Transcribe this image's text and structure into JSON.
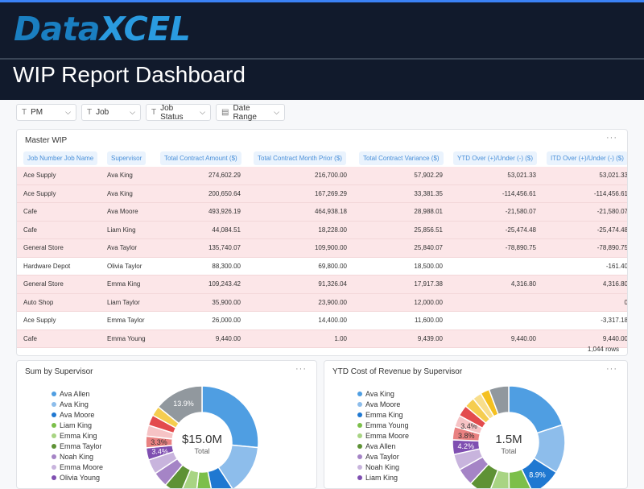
{
  "brand": {
    "logo_a": "Data",
    "logo_b": "XCEL"
  },
  "page_title": "WIP Report Dashboard",
  "filters": [
    {
      "label": "PM",
      "icon": "text-type-icon"
    },
    {
      "label": "Job",
      "icon": "text-type-icon"
    },
    {
      "label": "Job Status",
      "icon": "text-type-icon"
    },
    {
      "label": "Date Range",
      "icon": "calendar-icon"
    }
  ],
  "table": {
    "title": "Master WIP",
    "more": "···",
    "columns": [
      "Job Number Job Name",
      "Supervisor",
      "Total Contract Amount ($)",
      "Total Contract Month Prior ($)",
      "Total Contract Variance ($)",
      "YTD Over (+)/Under (-) ($)",
      "ITD Over (+)/Under (-) ($)"
    ],
    "rows": [
      {
        "hl": true,
        "cells": [
          "Ace Supply",
          "Ava King",
          "274,602.29",
          "216,700.00",
          "57,902.29",
          "53,021.33",
          "53,021.33"
        ]
      },
      {
        "hl": true,
        "cells": [
          "Ace Supply",
          "Ava King",
          "200,650.64",
          "167,269.29",
          "33,381.35",
          "-114,456.61",
          "-114,456.61"
        ]
      },
      {
        "hl": true,
        "cells": [
          "Cafe",
          "Ava Moore",
          "493,926.19",
          "464,938.18",
          "28,988.01",
          "-21,580.07",
          "-21,580.07"
        ]
      },
      {
        "hl": true,
        "cells": [
          "Cafe",
          "Liam King",
          "44,084.51",
          "18,228.00",
          "25,856.51",
          "-25,474.48",
          "-25,474.48"
        ]
      },
      {
        "hl": true,
        "cells": [
          "General Store",
          "Ava Taylor",
          "135,740.07",
          "109,900.00",
          "25,840.07",
          "-78,890.75",
          "-78,890.75"
        ]
      },
      {
        "hl": false,
        "cells": [
          "Hardware Depot",
          "Olivia Taylor",
          "88,300.00",
          "69,800.00",
          "18,500.00",
          "",
          "-161.40"
        ]
      },
      {
        "hl": true,
        "cells": [
          "General Store",
          "Emma King",
          "109,243.42",
          "91,326.04",
          "17,917.38",
          "4,316.80",
          "4,316.80"
        ]
      },
      {
        "hl": true,
        "cells": [
          "Auto Shop",
          "Liam Taylor",
          "35,900.00",
          "23,900.00",
          "12,000.00",
          "",
          "0"
        ]
      },
      {
        "hl": false,
        "cells": [
          "Ace Supply",
          "Emma Taylor",
          "26,000.00",
          "14,400.00",
          "11,600.00",
          "",
          "-3,317.18"
        ]
      },
      {
        "hl": true,
        "cells": [
          "Cafe",
          "Emma Young",
          "9,440.00",
          "1.00",
          "9,439.00",
          "9,440.00",
          "9,440.00"
        ]
      }
    ],
    "row_count": "1,044 rows"
  },
  "chart_data": [
    {
      "type": "pie",
      "title": "Sum by Supervisor",
      "more": "···",
      "center_value": "$15.0M",
      "center_label": "Total",
      "legend": "left",
      "slices": [
        {
          "name": "Ava Allen",
          "value": 26.0,
          "color": "#4f9ee2"
        },
        {
          "name": "Ava King",
          "value": 14.0,
          "color": "#8dbdeb"
        },
        {
          "name": "Ava Moore",
          "value": 6.0,
          "color": "#1f78d1"
        },
        {
          "name": "Liam King",
          "value": 4.8,
          "color": "#7cbf4a"
        },
        {
          "name": "Emma King",
          "value": 4.5,
          "color": "#a8d483"
        },
        {
          "name": "Emma Taylor",
          "value": 4.8,
          "color": "#5e9235"
        },
        {
          "name": "Noah King",
          "value": 4.3,
          "color": "#a584c6"
        },
        {
          "name": "Emma Moore",
          "value": 4.2,
          "color": "#c8b4dd"
        },
        {
          "name": "Olivia Young",
          "value": 3.4,
          "label": "3.4%",
          "color": "#7f4fb1"
        },
        {
          "name": "",
          "value": 3.3,
          "label": "3.3%",
          "color": "#e98181"
        },
        {
          "name": "",
          "value": 3.1,
          "color": "#f6c3c5"
        },
        {
          "name": "",
          "value": 3.0,
          "color": "#e34b4d"
        },
        {
          "name": "",
          "value": 2.8,
          "color": "#f5cd50"
        },
        {
          "name": "",
          "value": 13.9,
          "label": "13.9%",
          "color": "#91989e"
        }
      ]
    },
    {
      "type": "pie",
      "title": "YTD Cost of Revenue by Supervisor",
      "more": "···",
      "center_value": "1.5M",
      "center_label": "Total",
      "legend": "left",
      "slices": [
        {
          "name": "Ava King",
          "value": 20.0,
          "color": "#4f9ee2"
        },
        {
          "name": "Ava Moore",
          "value": 14.0,
          "color": "#8dbdeb"
        },
        {
          "name": "Emma King",
          "value": 8.9,
          "label": "8.9%",
          "color": "#1f78d1"
        },
        {
          "name": "Emma Young",
          "value": 7.0,
          "color": "#7cbf4a"
        },
        {
          "name": "Emma Moore",
          "value": 6.0,
          "color": "#a8d483"
        },
        {
          "name": "Ava Allen",
          "value": 6.0,
          "color": "#5e9235"
        },
        {
          "name": "Ava Taylor",
          "value": 5.0,
          "color": "#a584c6"
        },
        {
          "name": "Noah King",
          "value": 4.6,
          "color": "#c8b4dd"
        },
        {
          "name": "Liam King",
          "value": 4.2,
          "label": "4.2%",
          "color": "#7f4fb1"
        },
        {
          "name": "",
          "value": 3.8,
          "label": "3.8%",
          "color": "#e98181"
        },
        {
          "name": "",
          "value": 3.4,
          "label": "3.4%",
          "color": "#f6c3c5"
        },
        {
          "name": "",
          "value": 3.2,
          "color": "#e34b4d"
        },
        {
          "name": "",
          "value": 3.0,
          "color": "#f5cd50"
        },
        {
          "name": "",
          "value": 2.6,
          "color": "#f8de8c"
        },
        {
          "name": "",
          "value": 2.6,
          "color": "#f4c020"
        },
        {
          "name": "",
          "value": 5.7,
          "color": "#91989e"
        }
      ]
    }
  ]
}
